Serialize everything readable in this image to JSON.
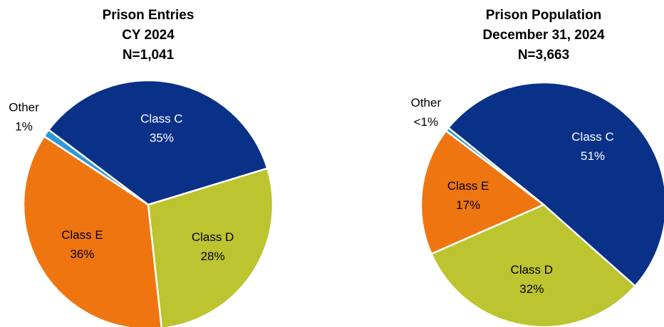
{
  "chart_data": [
    {
      "type": "pie",
      "title": "Prison Entries",
      "subtitle": "CY 2024",
      "n_label": "N=1,041",
      "categories": [
        "Class C",
        "Class D",
        "Class E",
        "Other"
      ],
      "values": [
        35,
        28,
        36,
        1
      ],
      "value_labels": [
        "35%",
        "28%",
        "36%",
        "1%"
      ],
      "colors": [
        "#0a3188",
        "#bcc42f",
        "#ef7510",
        "#2f97d8"
      ]
    },
    {
      "type": "pie",
      "title": "Prison Population",
      "subtitle": "December 31, 2024",
      "n_label": "N=3,663",
      "categories": [
        "Class C",
        "Class D",
        "Class E",
        "Other"
      ],
      "values": [
        51,
        32,
        17,
        0.5
      ],
      "value_labels": [
        "51%",
        "32%",
        "17%",
        "<1%"
      ],
      "colors": [
        "#0a3188",
        "#bcc42f",
        "#ef7510",
        "#2f97d8"
      ]
    }
  ]
}
